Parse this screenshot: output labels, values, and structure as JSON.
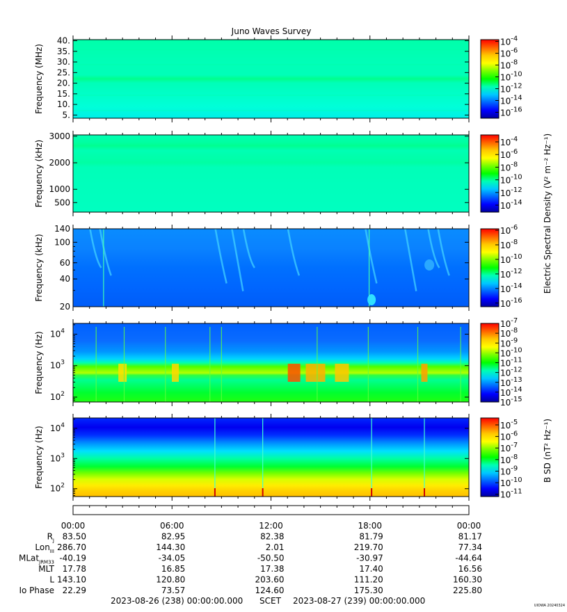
{
  "title": "Juno Waves Survey",
  "credit": "UIOWA 20240324",
  "colors": {
    "cbar": [
      "#0000a0",
      "#0000ff",
      "#0064ff",
      "#00c8ff",
      "#00ffb4",
      "#00ff00",
      "#78ff00",
      "#ffff00",
      "#ffc800",
      "#ff6400",
      "#ff0000"
    ]
  },
  "chart_data": [
    {
      "type": "heatmap",
      "id": "hfwbr",
      "ylabel": "Frequency (MHz)",
      "yscale": "linear",
      "ylim": [
        3.5,
        40.5
      ],
      "yticks": [
        "40.",
        "35.",
        "30.",
        "25.",
        "20.",
        "15.",
        "10.",
        "5."
      ],
      "ytick_values": [
        40,
        35,
        30,
        25,
        20,
        15,
        10,
        5
      ],
      "cbar_ticks": [
        "10-4",
        "10-6",
        "10-8",
        "10-10",
        "10-12",
        "10-14",
        "10-16"
      ],
      "cbar_exponents": [
        -4,
        -6,
        -8,
        -10,
        -12,
        -14,
        -16
      ],
      "cbar_range": [
        -17,
        -3.7
      ],
      "level_description": "uniform ~10-12 with band near 21 MHz",
      "base_level": -11.3,
      "bands": [
        {
          "freq": 21,
          "level": -10.4
        }
      ]
    },
    {
      "type": "heatmap",
      "id": "hfr-mhz-low",
      "ylabel": "Frequency (kHz)",
      "yscale": "linear",
      "ylim": [
        140,
        3050
      ],
      "yticks": [
        "3000",
        "2000",
        "1000",
        "500"
      ],
      "ytick_values": [
        3000,
        2000,
        1000,
        500
      ],
      "cbar_ticks": [
        "10-4",
        "10-6",
        "10-8",
        "10-10",
        "10-12",
        "10-14"
      ],
      "cbar_exponents": [
        -4,
        -6,
        -8,
        -10,
        -12,
        -14
      ],
      "cbar_range": [
        -15.1,
        -2.9
      ],
      "base_level": -11.4,
      "bands": [
        {
          "freq": 2000,
          "level": -10.6
        },
        {
          "freq": 1000,
          "level": -10.9
        }
      ]
    },
    {
      "type": "heatmap",
      "id": "lfr-khz",
      "ylabel": "Frequency (kHz)",
      "yscale": "log",
      "ylim": [
        20,
        140
      ],
      "yticks": [
        "140",
        "100",
        "60",
        "40",
        "20"
      ],
      "ytick_values": [
        140,
        100,
        60,
        40,
        20
      ],
      "cbar_ticks": [
        "10-6",
        "10-8",
        "10-10",
        "10-12",
        "10-14",
        "10-16"
      ],
      "cbar_exponents": [
        -6,
        -8,
        -10,
        -12,
        -14,
        -16
      ],
      "cbar_range": [
        -16.5,
        -5.8
      ],
      "base_level": -14.6,
      "bursts_at_hours": [
        1.2,
        1.8,
        8.8,
        9.8,
        10.5,
        13.2,
        17.9,
        20.3,
        21.7,
        22.3
      ]
    },
    {
      "type": "heatmap",
      "id": "lfr-hz",
      "ylabel": "Frequency (Hz)",
      "yscale": "log",
      "ylim": [
        70,
        22000
      ],
      "yticks": [
        "10",
        "10",
        "10"
      ],
      "ytick_exponents": [
        "4",
        "3",
        "2"
      ],
      "ytick_values": [
        10000,
        1000,
        100
      ],
      "cbar_ticks": [
        "10-7",
        "10-8",
        "10-9",
        "10-10",
        "10-11",
        "10-12",
        "10-13",
        "10-14",
        "10-15"
      ],
      "cbar_exponents": [
        -7,
        -8,
        -9,
        -10,
        -11,
        -12,
        -13,
        -14,
        -15
      ],
      "cbar_range": [
        -15,
        -7
      ]
    },
    {
      "type": "heatmap",
      "id": "magnetic",
      "ylabel": "Frequency (Hz)",
      "yscale": "log",
      "ylim": [
        55,
        22000
      ],
      "yticks": [
        "10",
        "10",
        "10"
      ],
      "ytick_exponents": [
        "4",
        "3",
        "2"
      ],
      "ytick_values": [
        10000,
        1000,
        100
      ],
      "cbar_ticks": [
        "10-5",
        "10-6",
        "10-7",
        "10-8",
        "10-9",
        "10-10",
        "10-11"
      ],
      "cbar_exponents": [
        -5,
        -6,
        -7,
        -8,
        -9,
        -10,
        -11
      ],
      "cbar_range": [
        -11.2,
        -4.4
      ]
    }
  ],
  "cbar_labels": {
    "electric": "Electric Spectral Density (V² m⁻² Hz⁻¹)",
    "magnetic": "B SD (nT² Hz⁻¹)"
  },
  "time_axis": {
    "labels": [
      "00:00",
      "06:00",
      "12:00",
      "18:00",
      "00:00"
    ],
    "hours": [
      0,
      6,
      12,
      18,
      24
    ]
  },
  "ephemeris": [
    {
      "label": "R",
      "sub": "J",
      "values": [
        "83.50",
        "82.95",
        "82.38",
        "81.79",
        "81.17"
      ]
    },
    {
      "label": "Lon",
      "sub": "III",
      "values": [
        "286.70",
        "144.30",
        "2.01",
        "219.70",
        "77.34"
      ]
    },
    {
      "label": "MLat",
      "sub": "JRM33",
      "values": [
        "-40.19",
        "-34.05",
        "-50.50",
        "-30.97",
        "-44.64"
      ]
    },
    {
      "label": "MLT",
      "sub": "",
      "values": [
        "17.78",
        "16.85",
        "17.38",
        "17.40",
        "16.56"
      ]
    },
    {
      "label": "L",
      "sub": "",
      "values": [
        "143.10",
        "120.80",
        "203.60",
        "111.20",
        "160.30"
      ]
    },
    {
      "label": "Io Phase",
      "sub": "",
      "values": [
        "22.29",
        "73.57",
        "124.60",
        "175.30",
        "225.80"
      ]
    }
  ],
  "footer": {
    "start": "2023-08-26 (238) 00:00:00.000",
    "scet": "SCET",
    "end": "2023-08-27 (239) 00:00:00.000"
  }
}
